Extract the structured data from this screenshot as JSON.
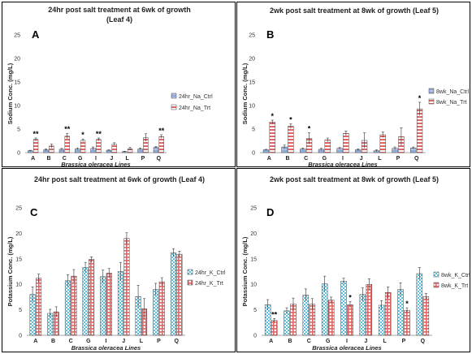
{
  "colors": {
    "na_ctrl": "#8ea9db",
    "na_trt": "#e06666",
    "k_ctrl": "#5bc0de",
    "k_trt": "#e06666"
  },
  "chart_data": [
    {
      "type": "bar",
      "panel_label": "A",
      "title_lines": [
        "24hr post salt treatment at 6wk of growth",
        "(Leaf 4)"
      ],
      "ylabel": "Sodium Conc. (mg/L)",
      "xlabel": "Brassica oleracea Lines",
      "ylim": [
        0,
        25
      ],
      "yticks": [
        "0",
        "5",
        "10",
        "15",
        "20",
        "25"
      ],
      "categories": [
        "A",
        "B",
        "C",
        "G",
        "I",
        "J",
        "L",
        "P",
        "Q"
      ],
      "legend_position": "right",
      "series": [
        {
          "name": "24hr_Na_Ctrl",
          "values": [
            0.4,
            0.6,
            0.7,
            0.8,
            0.9,
            0.5,
            0.2,
            0.8,
            1.1
          ],
          "errors": [
            0.1,
            0.2,
            0.2,
            0.2,
            0.3,
            0.1,
            0.1,
            0.2,
            0.2
          ]
        },
        {
          "name": "24hr_Na_Trt",
          "values": [
            2.8,
            1.4,
            3.5,
            2.6,
            2.8,
            1.8,
            0.8,
            3.2,
            3.4
          ],
          "errors": [
            0.3,
            0.4,
            0.6,
            0.3,
            0.3,
            0.3,
            0.3,
            0.8,
            0.4
          ]
        }
      ],
      "significance": [
        "**",
        "",
        "**",
        "*",
        "**",
        "",
        "",
        "",
        "**"
      ]
    },
    {
      "type": "bar",
      "panel_label": "B",
      "title_lines": [
        "2wk post salt treatment at 8wk of growth (Leaf 5)"
      ],
      "ylabel": "Sodium Conc. (mg/L)",
      "xlabel": "Brassica oleracea Lines",
      "ylim": [
        0,
        25
      ],
      "yticks": [
        "0",
        "5",
        "10",
        "15",
        "20",
        "25"
      ],
      "categories": [
        "A",
        "B",
        "C",
        "G",
        "I",
        "J",
        "L",
        "P",
        "Q"
      ],
      "legend_position": "right",
      "series": [
        {
          "name": "8wk_Na_Ctrl",
          "values": [
            0.6,
            1.2,
            0.8,
            0.7,
            0.9,
            0.6,
            0.4,
            0.9,
            1.0
          ],
          "errors": [
            0.1,
            0.4,
            0.2,
            0.2,
            0.2,
            0.2,
            0.2,
            0.3,
            0.2
          ]
        },
        {
          "name": "8wk_Na_Trt",
          "values": [
            6.5,
            5.6,
            3.0,
            2.7,
            4.1,
            2.6,
            3.8,
            3.4,
            9.3
          ],
          "errors": [
            0.4,
            0.5,
            1.2,
            0.4,
            0.5,
            1.6,
            0.6,
            1.9,
            1.4
          ]
        }
      ],
      "significance": [
        "*",
        "*",
        "*",
        "",
        "",
        "",
        "",
        "",
        "*"
      ]
    },
    {
      "type": "bar",
      "panel_label": "C",
      "title_lines": [
        "24hr post salt treatment at 6wk of growth  (Leaf 4)"
      ],
      "ylabel": "Potassium Conc. (mg/L)",
      "xlabel": "Brassica oleracea Lines",
      "ylim": [
        0,
        25
      ],
      "yticks": [
        "0",
        "5",
        "10",
        "15",
        "20",
        "25"
      ],
      "categories": [
        "A",
        "B",
        "C",
        "G",
        "I",
        "J",
        "L",
        "P",
        "Q"
      ],
      "legend_position": "right",
      "series": [
        {
          "name": "24hr_K_Ctrl",
          "values": [
            8.0,
            4.3,
            10.7,
            13.3,
            11.5,
            12.5,
            7.6,
            9.0,
            16.2
          ],
          "errors": [
            1.5,
            0.8,
            1.2,
            1.0,
            1.3,
            1.8,
            2.2,
            1.2,
            0.8
          ]
        },
        {
          "name": "24hr_K_Trt",
          "values": [
            11.2,
            4.6,
            11.6,
            14.9,
            12.2,
            19.0,
            5.2,
            10.5,
            15.9
          ],
          "errors": [
            0.8,
            1.0,
            1.3,
            0.5,
            0.9,
            1.1,
            2.0,
            0.8,
            0.6
          ]
        }
      ],
      "significance": [
        "",
        "",
        "",
        "",
        "",
        "",
        "",
        "",
        ""
      ]
    },
    {
      "type": "bar",
      "panel_label": "D",
      "title_lines": [
        "2wk post salt treatment at 8wk of growth (Leaf 5)"
      ],
      "ylabel": "Potassium Conc. (mg/L)",
      "xlabel": "Brassica oleracea Lines",
      "ylim": [
        0,
        25
      ],
      "yticks": [
        "0",
        "5",
        "10",
        "15",
        "20",
        "25"
      ],
      "categories": [
        "A",
        "B",
        "C",
        "G",
        "I",
        "J",
        "L",
        "P",
        "Q"
      ],
      "legend_position": "right",
      "series": [
        {
          "name": "8wk_K_Ctrl",
          "values": [
            6.0,
            4.8,
            7.9,
            10.1,
            10.6,
            8.0,
            5.9,
            9.0,
            12.1
          ],
          "errors": [
            1.0,
            0.6,
            1.2,
            1.5,
            0.6,
            1.3,
            0.9,
            1.3,
            1.2
          ]
        },
        {
          "name": "8wk_K_Trt",
          "values": [
            2.9,
            6.1,
            6.1,
            6.9,
            6.0,
            10.0,
            8.4,
            4.9,
            7.6
          ],
          "errors": [
            0.4,
            1.2,
            1.1,
            0.6,
            0.6,
            1.1,
            1.1,
            0.5,
            0.6
          ]
        }
      ],
      "significance": [
        "**",
        "",
        "",
        "",
        "*",
        "",
        "",
        "*",
        ""
      ]
    }
  ]
}
